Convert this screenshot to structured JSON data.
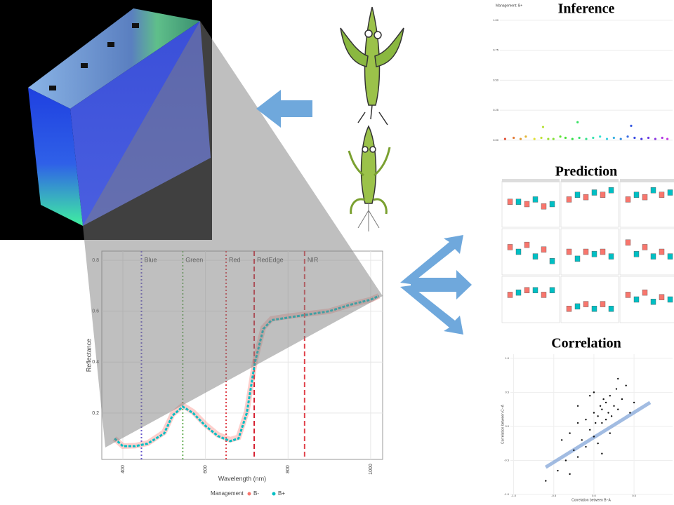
{
  "main": {
    "type": "line",
    "x_label": "Wavelength (nm)",
    "y_label": "Reflectance",
    "xlim": [
      349,
      1029
    ],
    "ylim": [
      0.018,
      0.836
    ],
    "xticks": [
      400,
      600,
      800,
      1000
    ],
    "yticks": [
      0.2,
      0.4,
      0.6,
      0.8
    ],
    "grid": true,
    "bands": [
      {
        "name": "Blue",
        "x": 445,
        "color": "#6a5acd",
        "dash": "dotted"
      },
      {
        "name": "Green",
        "x": 545,
        "color": "#6fb35f",
        "dash": "dotted"
      },
      {
        "name": "Red",
        "x": 650,
        "color": "#e0414a",
        "dash": "dotted"
      },
      {
        "name": "RedEdge",
        "x": 718,
        "color": "#d62030",
        "dash": "dashed"
      },
      {
        "name": "NIR",
        "x": 840,
        "color": "#e0414a",
        "dash": "dashed"
      }
    ],
    "x": [
      380,
      400,
      430,
      460,
      500,
      520,
      545,
      570,
      600,
      630,
      660,
      680,
      700,
      720,
      740,
      760,
      800,
      900,
      950,
      1000,
      1020
    ],
    "legend_title": "Management",
    "series": [
      {
        "name": "B-",
        "color": "#f8766d",
        "values": [
          0.1,
          0.07,
          0.072,
          0.082,
          0.125,
          0.195,
          0.23,
          0.205,
          0.155,
          0.115,
          0.095,
          0.105,
          0.205,
          0.405,
          0.535,
          0.57,
          0.58,
          0.6,
          0.625,
          0.645,
          0.66
        ]
      },
      {
        "name": "B+",
        "color": "#00bfc4",
        "values": [
          0.1,
          0.07,
          0.07,
          0.08,
          0.12,
          0.19,
          0.225,
          0.2,
          0.15,
          0.11,
          0.09,
          0.1,
          0.2,
          0.4,
          0.53,
          0.565,
          0.575,
          0.6,
          0.625,
          0.645,
          0.66
        ]
      }
    ]
  },
  "inference": {
    "title": "Inference",
    "subtitle": "Management: B+",
    "xlim": [
      0,
      100
    ],
    "ylim": [
      -0.03,
      1.04
    ],
    "yticks": [
      {
        "value": 0,
        "label": "0.00"
      },
      {
        "value": 0.25,
        "label": "0.25"
      },
      {
        "value": 0.5,
        "label": "0.50"
      },
      {
        "value": 0.75,
        "label": "0.75"
      },
      {
        "value": 1,
        "label": "1.00"
      }
    ],
    "x": [
      3,
      8,
      12,
      15,
      20,
      24,
      28,
      31,
      35,
      38,
      42,
      46,
      50,
      54,
      58,
      62,
      66,
      70,
      74,
      78,
      82,
      86,
      90,
      94,
      97,
      25,
      45,
      76
    ],
    "values": [
      0.01,
      0.02,
      0.01,
      0.03,
      0.01,
      0.02,
      0.01,
      0.01,
      0.03,
      0.02,
      0.01,
      0.02,
      0.01,
      0.02,
      0.03,
      0.01,
      0.02,
      0.01,
      0.03,
      0.02,
      0.01,
      0.02,
      0.01,
      0.02,
      0.01,
      0.11,
      0.15,
      0.12
    ]
  },
  "prediction": {
    "title": "Prediction",
    "colors": [
      "#f8766d",
      "#00bfc4"
    ],
    "panels": [
      [
        0.55,
        0.55,
        0.5,
        0.6,
        0.45,
        0.5
      ],
      [
        0.6,
        0.7,
        0.65,
        0.75,
        0.7,
        0.8
      ],
      [
        0.6,
        0.7,
        0.65,
        0.8,
        0.7,
        0.75
      ],
      [
        0.6,
        0.5,
        0.65,
        0.4,
        0.55,
        0.3
      ],
      [
        0.5,
        0.35,
        0.5,
        0.45,
        0.5,
        0.4
      ],
      [
        0.7,
        0.45,
        0.6,
        0.4,
        0.5,
        0.4
      ],
      [
        0.6,
        0.65,
        0.7,
        0.7,
        0.6,
        0.7
      ],
      [
        0.3,
        0.35,
        0.4,
        0.3,
        0.4,
        0.3
      ],
      [
        0.6,
        0.5,
        0.65,
        0.45,
        0.55,
        0.5
      ]
    ]
  },
  "correlation": {
    "title": "Correlation",
    "x_label": "Correlation between B−A",
    "y_label": "Correlation between C−A",
    "xlim": [
      -1.04,
      0.98
    ],
    "ylim": [
      -1.0,
      1.06
    ],
    "xticks": [
      {
        "value": -1,
        "label": "-1.0"
      },
      {
        "value": -0.5,
        "label": "-0.5"
      },
      {
        "value": 0,
        "label": "0.0"
      },
      {
        "value": 0.5,
        "label": "0.5"
      }
    ],
    "yticks": [
      {
        "value": -1,
        "label": "-1.0"
      },
      {
        "value": -0.5,
        "label": "-0.5"
      },
      {
        "value": 0,
        "label": "0.0"
      },
      {
        "value": 0.5,
        "label": "0.5"
      },
      {
        "value": 1,
        "label": "1.0"
      }
    ],
    "x": [
      -0.45,
      -0.4,
      -0.35,
      -0.3,
      -0.3,
      -0.25,
      -0.2,
      -0.2,
      -0.15,
      -0.1,
      -0.1,
      -0.05,
      0,
      0,
      0.02,
      0.05,
      0.05,
      0.08,
      0.1,
      0.1,
      0.12,
      0.15,
      0.15,
      0.18,
      0.2,
      0.22,
      0.25,
      0.28,
      0.3,
      0.35,
      0.4,
      -0.6,
      0.45,
      -0.05,
      0.1,
      0.3,
      -0.2,
      0,
      0.2,
      0.5
    ],
    "values": [
      -0.65,
      -0.2,
      -0.5,
      -0.1,
      -0.7,
      -0.35,
      0.05,
      -0.45,
      -0.2,
      -0.3,
      0.1,
      -0.05,
      -0.15,
      0.2,
      0.05,
      -0.25,
      0.15,
      0.3,
      0.05,
      0.25,
      0.4,
      0.1,
      0.35,
      0.2,
      0.45,
      0.15,
      0.3,
      0.55,
      0.25,
      0.4,
      0.6,
      -0.8,
      0.2,
      0.45,
      -0.4,
      0.7,
      0.3,
      0.5,
      -0.1,
      0.35
    ],
    "fit": {
      "x": [
        -0.6,
        0.7
      ],
      "values": [
        -0.6,
        0.35
      ]
    }
  }
}
